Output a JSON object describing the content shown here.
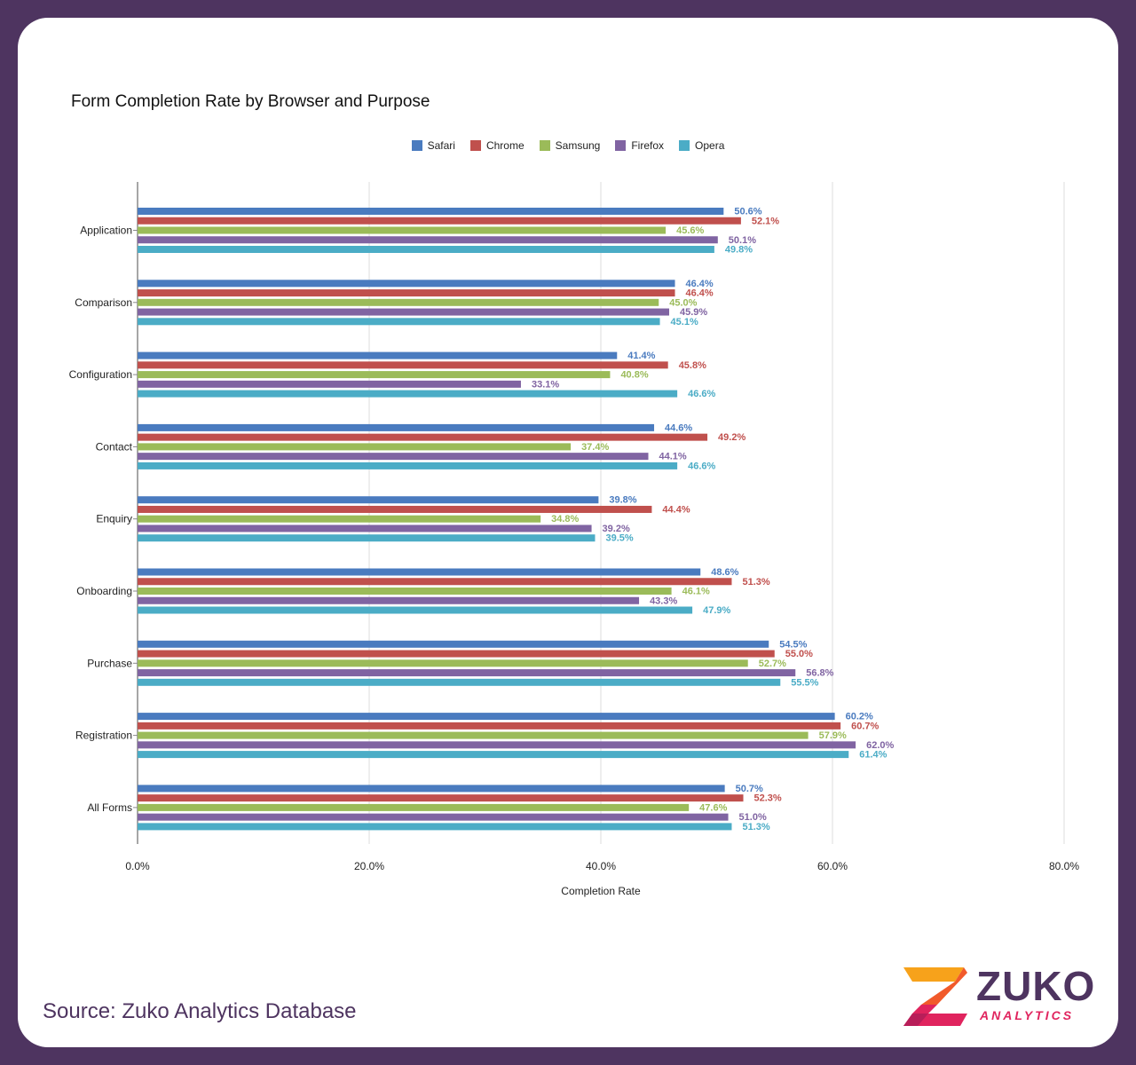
{
  "chart_data": {
    "type": "bar",
    "orientation": "horizontal",
    "title": "Form Completion Rate by Browser and Purpose",
    "xlabel": "Completion Rate",
    "ylabel": "",
    "xlim": [
      0,
      80
    ],
    "xticks": [
      "0.0%",
      "20.0%",
      "40.0%",
      "60.0%",
      "80.0%"
    ],
    "grid": true,
    "legend_position": "top-center",
    "categories": [
      "Application",
      "Comparison",
      "Configuration",
      "Contact",
      "Enquiry",
      "Onboarding",
      "Purchase",
      "Registration",
      "All Forms"
    ],
    "series": [
      {
        "name": "Safari",
        "color": "#4a7bbf",
        "values": [
          50.6,
          46.4,
          41.4,
          44.6,
          39.8,
          48.6,
          54.5,
          60.2,
          50.7
        ]
      },
      {
        "name": "Chrome",
        "color": "#c0504d",
        "values": [
          52.1,
          46.4,
          45.8,
          49.2,
          44.4,
          51.3,
          55.0,
          60.7,
          52.3
        ]
      },
      {
        "name": "Samsung",
        "color": "#9bbb59",
        "values": [
          45.6,
          45.0,
          40.8,
          37.4,
          34.8,
          46.1,
          52.7,
          57.9,
          47.6
        ]
      },
      {
        "name": "Firefox",
        "color": "#8064a2",
        "values": [
          50.1,
          45.9,
          33.1,
          44.1,
          39.2,
          43.3,
          56.8,
          62.0,
          51.0
        ]
      },
      {
        "name": "Opera",
        "color": "#4bacc6",
        "values": [
          49.8,
          45.1,
          46.6,
          46.6,
          39.5,
          47.9,
          55.5,
          61.4,
          51.3
        ]
      }
    ]
  },
  "footer": {
    "source": "Source: Zuko Analytics Database",
    "logo_name": "ZUKO",
    "logo_sub": "ANALYTICS"
  }
}
